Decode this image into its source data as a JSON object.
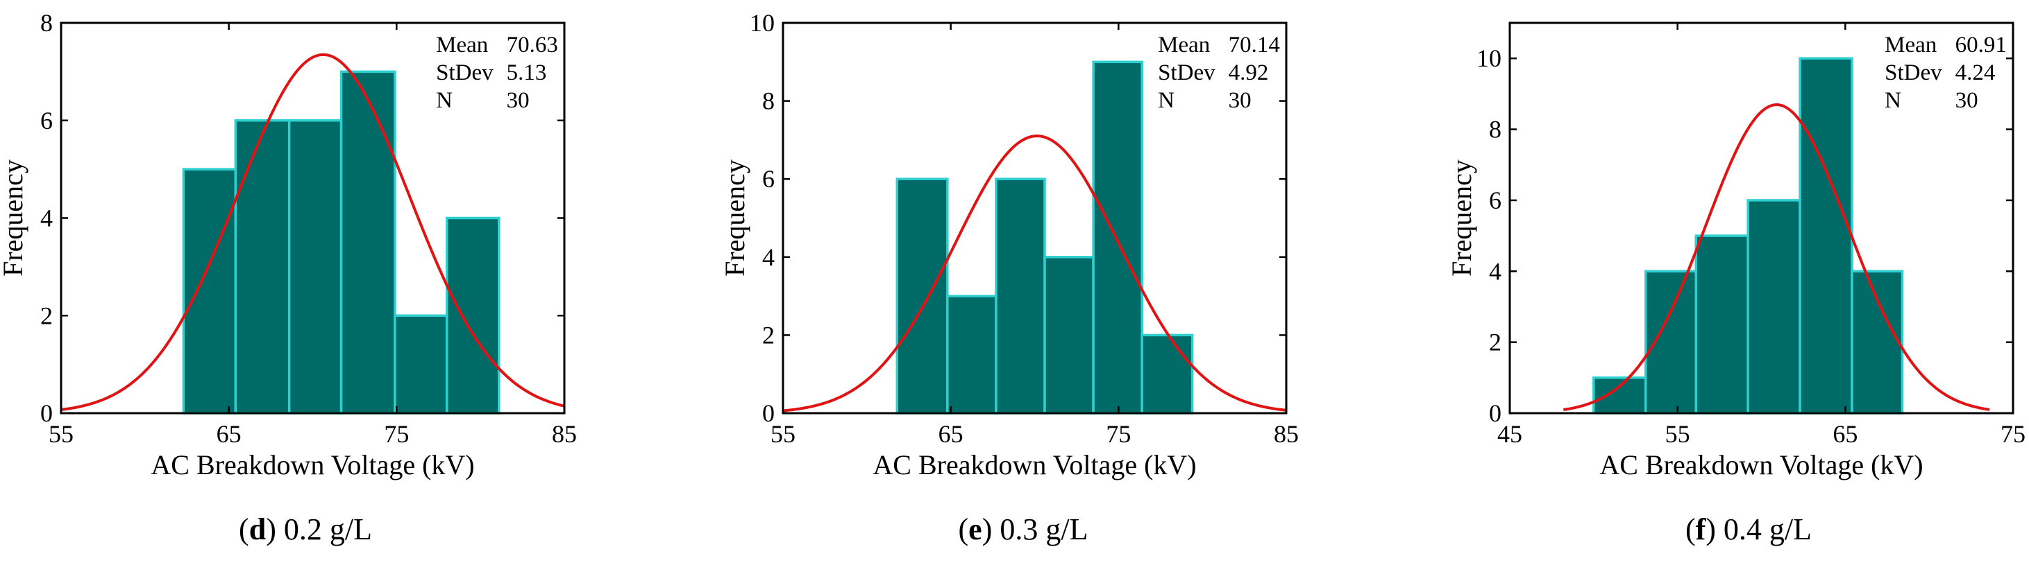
{
  "colors": {
    "bar_fill": "#006a66",
    "bar_edge": "#2ecfcf",
    "curve": "#e01414",
    "axis": "#000000"
  },
  "chart_data": [
    {
      "type": "histogram",
      "caption": {
        "letter": "d",
        "rest": " 0.2 g/L"
      },
      "xlabel": "AC Breakdown Voltage (kV)",
      "ylabel": "Frequency",
      "xlim": [
        55,
        85
      ],
      "ylim": [
        0,
        8
      ],
      "xticks": [
        55,
        65,
        75,
        85
      ],
      "yticks": [
        0,
        2,
        4,
        6,
        8
      ],
      "bins": [
        {
          "x0": 62.3,
          "x1": 65.4,
          "count": 5
        },
        {
          "x0": 65.4,
          "x1": 68.6,
          "count": 6
        },
        {
          "x0": 68.6,
          "x1": 71.7,
          "count": 6
        },
        {
          "x0": 71.7,
          "x1": 74.9,
          "count": 7
        },
        {
          "x0": 74.9,
          "x1": 78.0,
          "count": 2
        },
        {
          "x0": 78.0,
          "x1": 81.1,
          "count": 4
        }
      ],
      "fit": {
        "mean": 70.63,
        "sd": 5.13,
        "n": 30,
        "bin_width": 3.15,
        "x_from": 55,
        "x_to": 85
      },
      "stats": [
        {
          "label": "Mean",
          "value": "70.63"
        },
        {
          "label": "StDev",
          "value": "5.13"
        },
        {
          "label": "N",
          "value": "30"
        }
      ]
    },
    {
      "type": "histogram",
      "caption": {
        "letter": "e",
        "rest": " 0.3 g/L"
      },
      "xlabel": "AC Breakdown Voltage (kV)",
      "ylabel": "Frequency",
      "xlim": [
        55,
        85
      ],
      "ylim": [
        0,
        10
      ],
      "xticks": [
        55,
        65,
        75,
        85
      ],
      "yticks": [
        0,
        2,
        4,
        6,
        8,
        10
      ],
      "bins": [
        {
          "x0": 61.8,
          "x1": 64.8,
          "count": 6
        },
        {
          "x0": 64.8,
          "x1": 67.7,
          "count": 3
        },
        {
          "x0": 67.7,
          "x1": 70.6,
          "count": 6
        },
        {
          "x0": 70.6,
          "x1": 73.5,
          "count": 4
        },
        {
          "x0": 73.5,
          "x1": 76.4,
          "count": 9
        },
        {
          "x0": 76.4,
          "x1": 79.4,
          "count": 2
        }
      ],
      "fit": {
        "mean": 70.14,
        "sd": 4.92,
        "n": 30,
        "bin_width": 2.92,
        "x_from": 55,
        "x_to": 85
      },
      "stats": [
        {
          "label": "Mean",
          "value": "70.14"
        },
        {
          "label": "StDev",
          "value": "4.92"
        },
        {
          "label": "N",
          "value": "30"
        }
      ]
    },
    {
      "type": "histogram",
      "caption": {
        "letter": "f",
        "rest": " 0.4 g/L"
      },
      "xlabel": "AC Breakdown Voltage (kV)",
      "ylabel": "Frequency",
      "xlim": [
        45,
        75
      ],
      "ylim": [
        0,
        11
      ],
      "xticks": [
        45,
        55,
        65,
        75
      ],
      "yticks": [
        0,
        2,
        4,
        6,
        8,
        10
      ],
      "bins": [
        {
          "x0": 50.0,
          "x1": 53.1,
          "count": 1
        },
        {
          "x0": 53.1,
          "x1": 56.1,
          "count": 4
        },
        {
          "x0": 56.1,
          "x1": 59.2,
          "count": 5
        },
        {
          "x0": 59.2,
          "x1": 62.3,
          "count": 6
        },
        {
          "x0": 62.3,
          "x1": 65.4,
          "count": 10
        },
        {
          "x0": 65.4,
          "x1": 68.4,
          "count": 4
        }
      ],
      "fit": {
        "mean": 60.91,
        "sd": 4.24,
        "n": 30,
        "bin_width": 3.08,
        "x_from": 48.2,
        "x_to": 73.6
      },
      "stats": [
        {
          "label": "Mean",
          "value": "60.91"
        },
        {
          "label": "StDev",
          "value": "4.24"
        },
        {
          "label": "N",
          "value": "30"
        }
      ]
    }
  ]
}
